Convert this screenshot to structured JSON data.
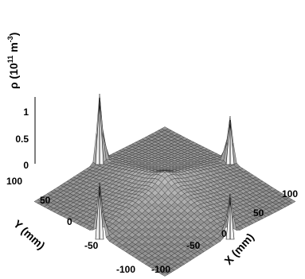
{
  "chart_data": {
    "type": "surface3d",
    "quantity": "ρ",
    "zlabel_base": "ρ (10",
    "zlabel_exp": "11",
    "zlabel_unit": " m",
    "zlabel_unit_exp": "-3",
    "zlabel_close": ")",
    "xlabel": "X (mm)",
    "ylabel": "Y (mm)",
    "xlim": [
      -100,
      100
    ],
    "ylim": [
      -100,
      100
    ],
    "zlim": [
      0,
      1
    ],
    "x_ticks": [
      "-100",
      "-50",
      "0",
      "50",
      "100"
    ],
    "y_ticks": [
      "-100",
      "-50",
      "0",
      "50",
      "100"
    ],
    "z_ticks": [
      "0",
      "0.5",
      "1"
    ],
    "peaks": [
      {
        "x": 0,
        "y": 100,
        "z": 1.2
      },
      {
        "x": 0,
        "y": -100,
        "z": 0.75
      },
      {
        "x": -100,
        "y": 0,
        "z": 0.95
      },
      {
        "x": 100,
        "y": 0,
        "z": 0.8
      }
    ],
    "surface_color": "#888888",
    "mesh_color": "#222222"
  }
}
